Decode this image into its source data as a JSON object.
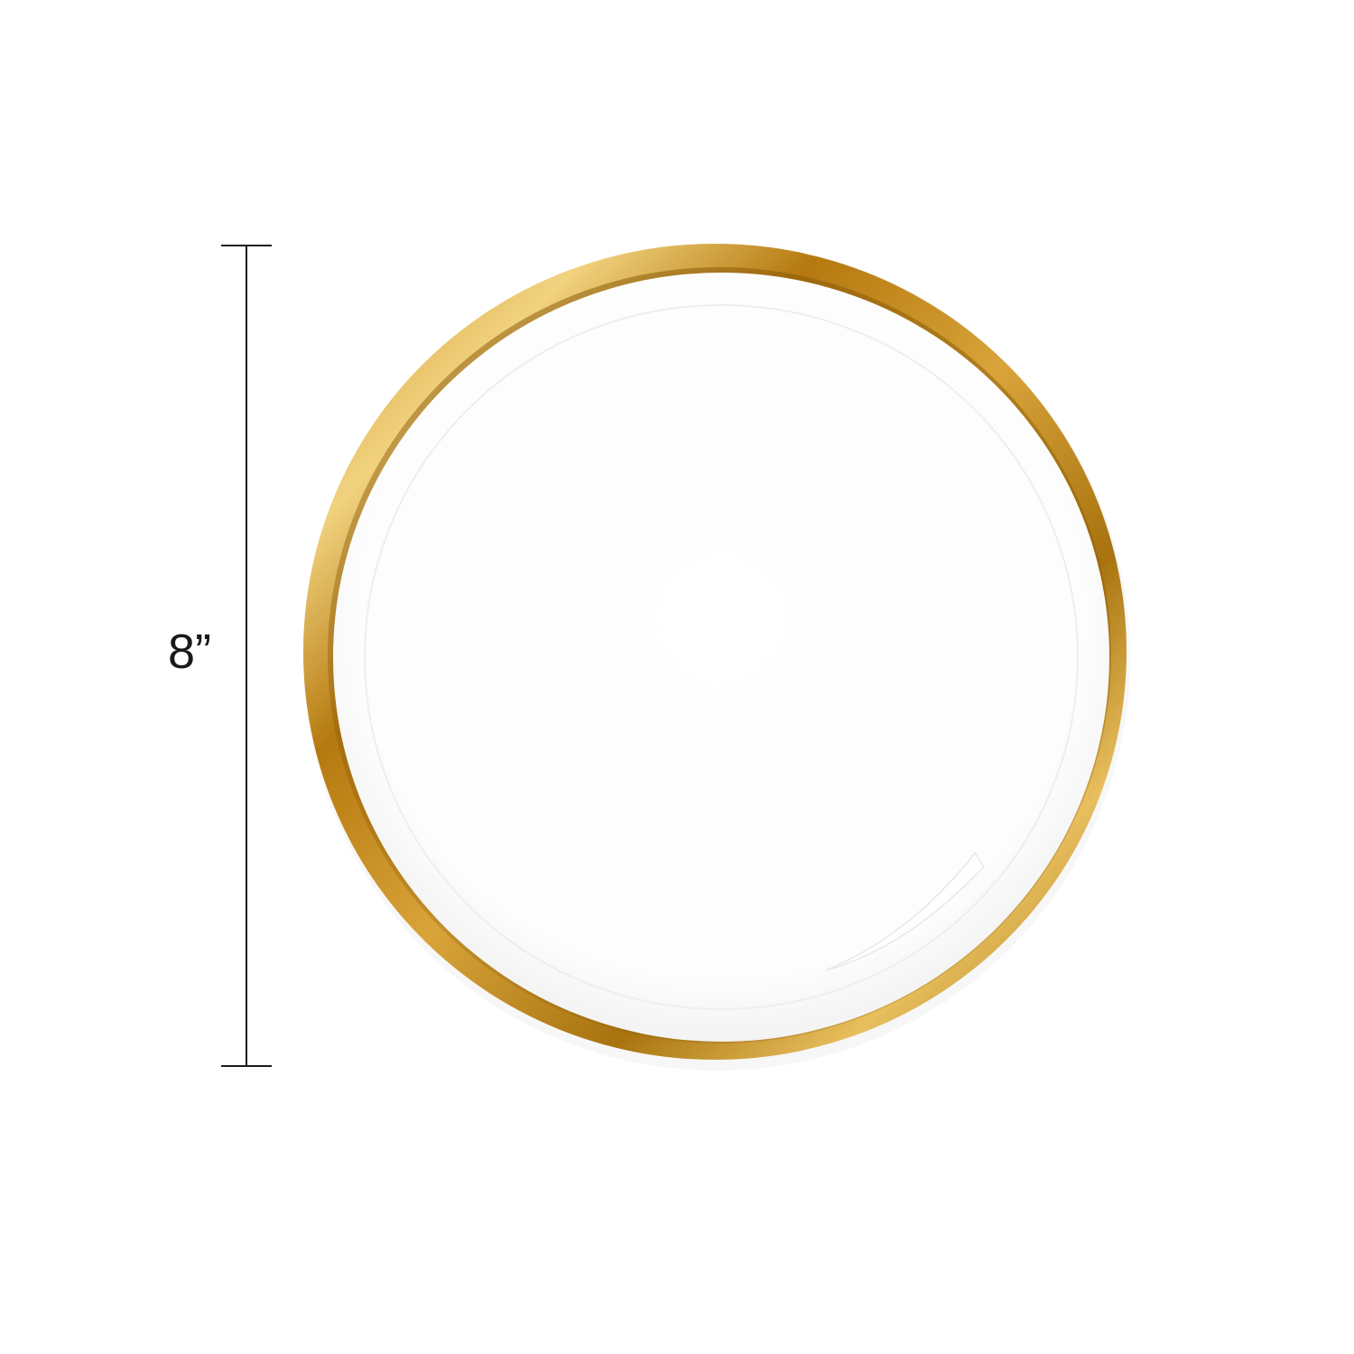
{
  "dimension": {
    "label": "8”"
  },
  "colors": {
    "background": "#ffffff",
    "plate_face": "#ffffff",
    "rim_gold_dark": "#a8730f",
    "rim_gold_mid": "#d9a43a",
    "rim_gold_light": "#f1d27f",
    "dimension_line": "#1a1a1a"
  }
}
